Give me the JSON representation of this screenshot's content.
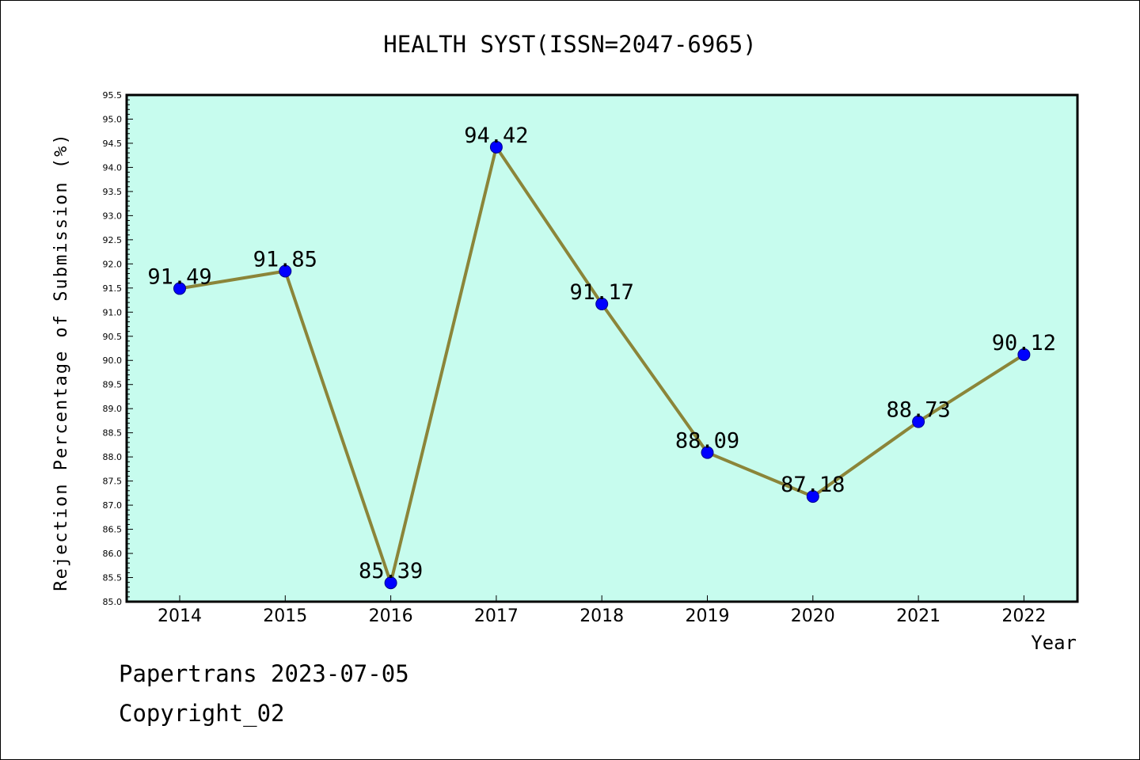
{
  "chart_data": {
    "type": "line",
    "title": "HEALTH SYST(ISSN=2047-6965)",
    "xlabel": "Year",
    "ylabel": "Rejection Percentage of Submission (%)",
    "categories": [
      "2014",
      "2015",
      "2016",
      "2017",
      "2018",
      "2019",
      "2020",
      "2021",
      "2022"
    ],
    "series": [
      {
        "values": [
          91.49,
          91.85,
          85.39,
          94.42,
          91.17,
          88.09,
          87.18,
          88.73,
          90.12
        ],
        "data_labels": [
          "91.49",
          "91.85",
          "85.39",
          "94.42",
          "91.17",
          "88.09",
          "87.18",
          "88.73",
          "90.12"
        ]
      }
    ],
    "ylim": [
      85.0,
      95.5
    ],
    "y_major_step": 0.5,
    "y_ticks": [
      "85.0",
      "85.5",
      "86.0",
      "86.5",
      "87.0",
      "87.5",
      "88.0",
      "88.5",
      "89.0",
      "89.5",
      "90.0",
      "90.5",
      "91.0",
      "91.5",
      "92.0",
      "92.5",
      "93.0",
      "93.5",
      "94.0",
      "94.5",
      "95.0",
      "95.5"
    ],
    "grid": false,
    "colors": {
      "plot_background": "#c7fcee",
      "line": "#8b8539",
      "marker": "#0000ff",
      "marker_edge": "#00008b",
      "axis": "#000000"
    }
  },
  "footer": {
    "line1": "Papertrans 2023-07-05",
    "line2": "Copyright_02"
  }
}
